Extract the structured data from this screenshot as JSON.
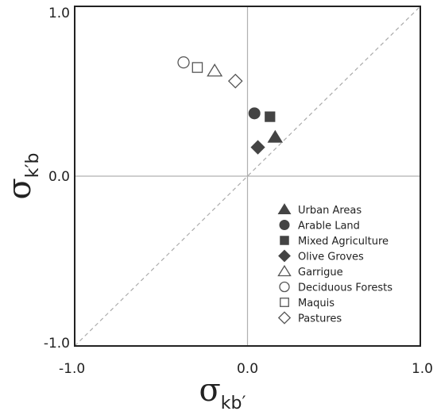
{
  "chart_data": {
    "type": "scatter",
    "title": "",
    "xlabel": {
      "symbol": "σ",
      "subscript": "kb′"
    },
    "ylabel": {
      "symbol": "σ",
      "subscript": "k′b"
    },
    "xlim": [
      -1.0,
      1.0
    ],
    "ylim": [
      -1.0,
      1.0
    ],
    "x_ticks": [
      "-1.0",
      "0.0",
      "1.0"
    ],
    "y_ticks": [
      "1.0",
      "0.0",
      "-1.0"
    ],
    "x_tick_values": [
      -1.0,
      0.0,
      1.0
    ],
    "y_tick_values": [
      1.0,
      0.0,
      -1.0
    ],
    "zero_lines": true,
    "diagonal_reference": true,
    "legend_position": "lower-right",
    "series": [
      {
        "name": "Urban Areas",
        "marker": "triangle",
        "filled": true,
        "x": 0.16,
        "y": 0.23
      },
      {
        "name": "Arable Land",
        "marker": "circle",
        "filled": true,
        "x": 0.04,
        "y": 0.37
      },
      {
        "name": "Mixed Agriculture",
        "marker": "square",
        "filled": true,
        "x": 0.13,
        "y": 0.35
      },
      {
        "name": "Olive Groves",
        "marker": "diamond",
        "filled": true,
        "x": 0.06,
        "y": 0.17
      },
      {
        "name": "Garrigue",
        "marker": "triangle",
        "filled": false,
        "x": -0.19,
        "y": 0.62
      },
      {
        "name": "Deciduous Forests",
        "marker": "circle",
        "filled": false,
        "x": -0.37,
        "y": 0.67
      },
      {
        "name": "Maquis",
        "marker": "square",
        "filled": false,
        "x": -0.29,
        "y": 0.64
      },
      {
        "name": "Pastures",
        "marker": "diamond",
        "filled": false,
        "x": -0.07,
        "y": 0.56
      }
    ],
    "colors": {
      "marker": "#444444",
      "frame": "#222222",
      "zero_line": "#b0b0b0",
      "diagonal": "#aaaaaa"
    }
  }
}
